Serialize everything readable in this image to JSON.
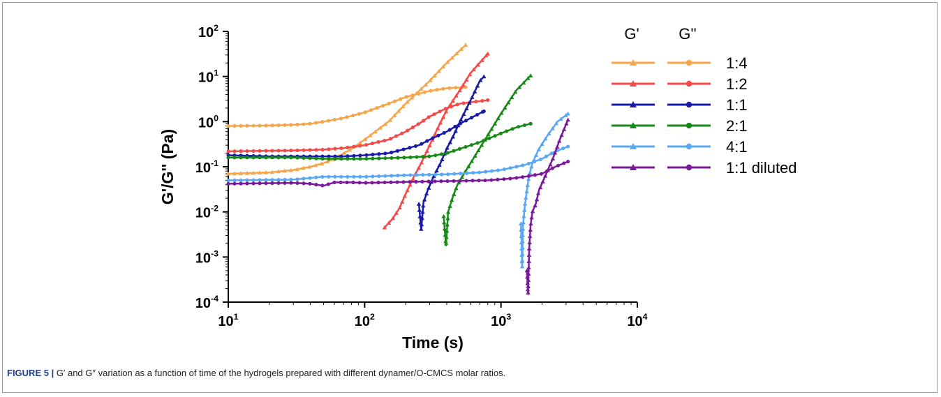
{
  "chart_data": {
    "type": "line",
    "xlabel": "Time (s)",
    "ylabel": "G'/G'' (Pa)",
    "xscale": "log",
    "yscale": "log",
    "xlim": [
      10,
      10000
    ],
    "ylim": [
      0.0001,
      100
    ],
    "x_ticks": [
      {
        "base": "10",
        "exp": "1"
      },
      {
        "base": "10",
        "exp": "2"
      },
      {
        "base": "10",
        "exp": "3"
      },
      {
        "base": "10",
        "exp": "4"
      }
    ],
    "y_ticks": [
      {
        "base": "10",
        "exp": "2"
      },
      {
        "base": "10",
        "exp": "1"
      },
      {
        "base": "10",
        "exp": "0"
      },
      {
        "base": "10",
        "exp": "-1"
      },
      {
        "base": "10",
        "exp": "-2"
      },
      {
        "base": "10",
        "exp": "-3"
      },
      {
        "base": "10",
        "exp": "-4"
      }
    ],
    "legend": {
      "position": "right",
      "header_gp": "G'",
      "header_gpp": "G''",
      "gp_marker": "triangle",
      "gpp_marker": "circle"
    },
    "series": [
      {
        "name": "1:4",
        "color": "#f7a54a",
        "gp": [
          [
            10,
            0.07
          ],
          [
            20,
            0.075
          ],
          [
            30,
            0.085
          ],
          [
            40,
            0.1
          ],
          [
            50,
            0.12
          ],
          [
            60,
            0.15
          ],
          [
            80,
            0.25
          ],
          [
            100,
            0.4
          ],
          [
            150,
            1.0
          ],
          [
            200,
            2.5
          ],
          [
            300,
            8
          ],
          [
            400,
            20
          ],
          [
            550,
            50
          ]
        ],
        "gpp": [
          [
            10,
            0.8
          ],
          [
            20,
            0.82
          ],
          [
            30,
            0.85
          ],
          [
            40,
            0.9
          ],
          [
            50,
            1.0
          ],
          [
            70,
            1.2
          ],
          [
            100,
            1.6
          ],
          [
            150,
            2.5
          ],
          [
            200,
            3.5
          ],
          [
            300,
            4.8
          ],
          [
            400,
            5.5
          ],
          [
            550,
            5.8
          ]
        ]
      },
      {
        "name": "1:2",
        "color": "#f44a4a",
        "gp": [
          [
            140,
            0.0045
          ],
          [
            160,
            0.007
          ],
          [
            180,
            0.012
          ],
          [
            200,
            0.025
          ],
          [
            230,
            0.06
          ],
          [
            260,
            0.12
          ],
          [
            300,
            0.3
          ],
          [
            350,
            0.8
          ],
          [
            400,
            1.8
          ],
          [
            500,
            5
          ],
          [
            600,
            12
          ],
          [
            800,
            32
          ]
        ],
        "gpp": [
          [
            10,
            0.22
          ],
          [
            30,
            0.23
          ],
          [
            50,
            0.24
          ],
          [
            70,
            0.26
          ],
          [
            100,
            0.3
          ],
          [
            150,
            0.4
          ],
          [
            200,
            0.6
          ],
          [
            250,
            0.9
          ],
          [
            300,
            1.3
          ],
          [
            400,
            2
          ],
          [
            500,
            2.5
          ],
          [
            800,
            3
          ]
        ]
      },
      {
        "name": "1:1",
        "color": "#1a1aa8",
        "gp": [
          [
            250,
            0.015
          ],
          [
            260,
            0.004
          ],
          [
            270,
            0.016
          ],
          [
            290,
            0.03
          ],
          [
            320,
            0.06
          ],
          [
            360,
            0.12
          ],
          [
            400,
            0.25
          ],
          [
            450,
            0.5
          ],
          [
            500,
            1
          ],
          [
            600,
            3
          ],
          [
            700,
            8
          ],
          [
            750,
            10
          ]
        ],
        "gpp": [
          [
            10,
            0.18
          ],
          [
            20,
            0.17
          ],
          [
            30,
            0.17
          ],
          [
            50,
            0.17
          ],
          [
            70,
            0.17
          ],
          [
            100,
            0.18
          ],
          [
            150,
            0.2
          ],
          [
            200,
            0.25
          ],
          [
            250,
            0.3
          ],
          [
            300,
            0.4
          ],
          [
            400,
            0.6
          ],
          [
            500,
            0.9
          ],
          [
            600,
            1.2
          ],
          [
            750,
            1.7
          ]
        ]
      },
      {
        "name": "2:1",
        "color": "#168a16",
        "gp": [
          [
            380,
            0.008
          ],
          [
            395,
            0.0018
          ],
          [
            410,
            0.01
          ],
          [
            440,
            0.02
          ],
          [
            480,
            0.04
          ],
          [
            550,
            0.08
          ],
          [
            650,
            0.18
          ],
          [
            800,
            0.5
          ],
          [
            1000,
            1.5
          ],
          [
            1300,
            5
          ],
          [
            1650,
            10.5
          ]
        ],
        "gpp": [
          [
            10,
            0.16
          ],
          [
            30,
            0.16
          ],
          [
            50,
            0.15
          ],
          [
            70,
            0.15
          ],
          [
            100,
            0.15
          ],
          [
            200,
            0.16
          ],
          [
            300,
            0.17
          ],
          [
            400,
            0.2
          ],
          [
            500,
            0.25
          ],
          [
            700,
            0.35
          ],
          [
            1000,
            0.55
          ],
          [
            1300,
            0.75
          ],
          [
            1650,
            0.9
          ]
        ]
      },
      {
        "name": "4:1",
        "color": "#5aa8f5",
        "gp": [
          [
            1400,
            0.0055
          ],
          [
            1430,
            0.0006
          ],
          [
            1450,
            0.005
          ],
          [
            1500,
            0.015
          ],
          [
            1550,
            0.03
          ],
          [
            1600,
            0.06
          ],
          [
            1700,
            0.12
          ],
          [
            1900,
            0.25
          ],
          [
            2200,
            0.5
          ],
          [
            2600,
            1
          ],
          [
            3100,
            1.5
          ]
        ],
        "gpp": [
          [
            10,
            0.05
          ],
          [
            30,
            0.052
          ],
          [
            50,
            0.06
          ],
          [
            100,
            0.06
          ],
          [
            200,
            0.065
          ],
          [
            400,
            0.068
          ],
          [
            700,
            0.075
          ],
          [
            1000,
            0.085
          ],
          [
            1500,
            0.11
          ],
          [
            2000,
            0.15
          ],
          [
            2500,
            0.22
          ],
          [
            3100,
            0.28
          ]
        ]
      },
      {
        "name": "1:1 diluted",
        "color": "#7a1a9a",
        "gp": [
          [
            1550,
            0.0005
          ],
          [
            1580,
            0.00015
          ],
          [
            1610,
            0.0015
          ],
          [
            1650,
            0.005
          ],
          [
            1700,
            0.01
          ],
          [
            1800,
            0.015
          ],
          [
            1900,
            0.03
          ],
          [
            2100,
            0.06
          ],
          [
            2400,
            0.15
          ],
          [
            2700,
            0.4
          ],
          [
            3100,
            1.1
          ]
        ],
        "gpp": [
          [
            10,
            0.042
          ],
          [
            30,
            0.044
          ],
          [
            40,
            0.042
          ],
          [
            50,
            0.038
          ],
          [
            60,
            0.045
          ],
          [
            80,
            0.045
          ],
          [
            100,
            0.044
          ],
          [
            200,
            0.046
          ],
          [
            400,
            0.048
          ],
          [
            800,
            0.05
          ],
          [
            1200,
            0.055
          ],
          [
            1500,
            0.06
          ],
          [
            2000,
            0.07
          ],
          [
            2500,
            0.1
          ],
          [
            3100,
            0.13
          ]
        ]
      }
    ]
  },
  "caption": {
    "label": "FIGURE 5 |",
    "text": " G′ and G″ variation as a function of time of the hydrogels prepared with different dynamer/O-CMCS molar ratios."
  }
}
